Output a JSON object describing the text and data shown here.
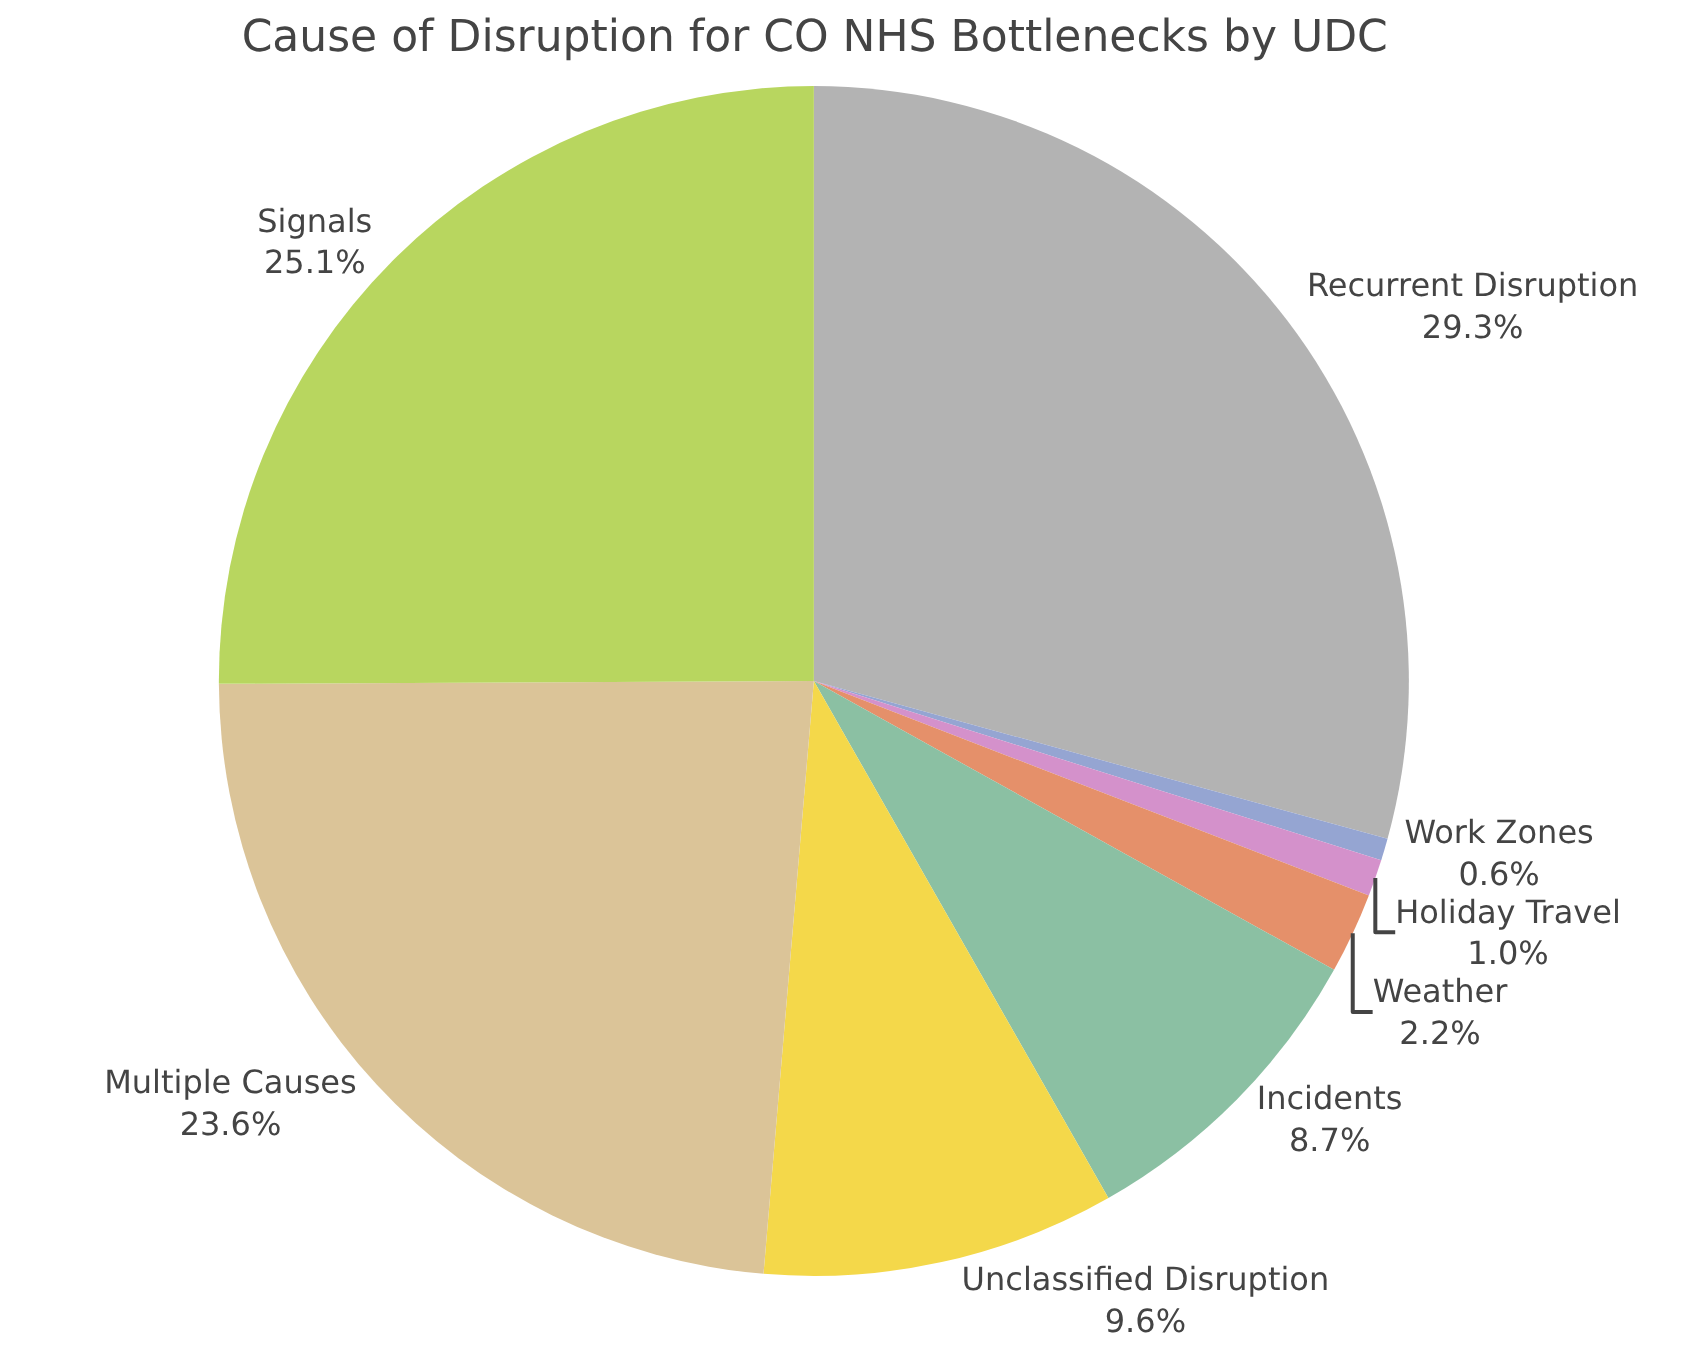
{
  "chart_data": {
    "type": "pie",
    "title": "Cause of Disruption for CO NHS Bottlenecks by UDC",
    "categories": [
      "Recurrent Disruption",
      "Work Zones",
      "Holiday Travel",
      "Weather",
      "Incidents",
      "Unclassified Disruption",
      "Multiple Causes",
      "Signals"
    ],
    "values": [
      29.3,
      0.6,
      1.0,
      2.2,
      8.7,
      9.6,
      23.6,
      25.1
    ],
    "value_labels": [
      "29.3%",
      "0.6%",
      "1.0%",
      "2.2%",
      "8.7%",
      "9.6%",
      "23.6%",
      "25.1%"
    ],
    "colors": [
      "#b3b3b3",
      "#95a5d2",
      "#d491cb",
      "#e5906a",
      "#8bc0a3",
      "#f4d84a",
      "#dbc498",
      "#b8d65f"
    ],
    "legend": false
  }
}
